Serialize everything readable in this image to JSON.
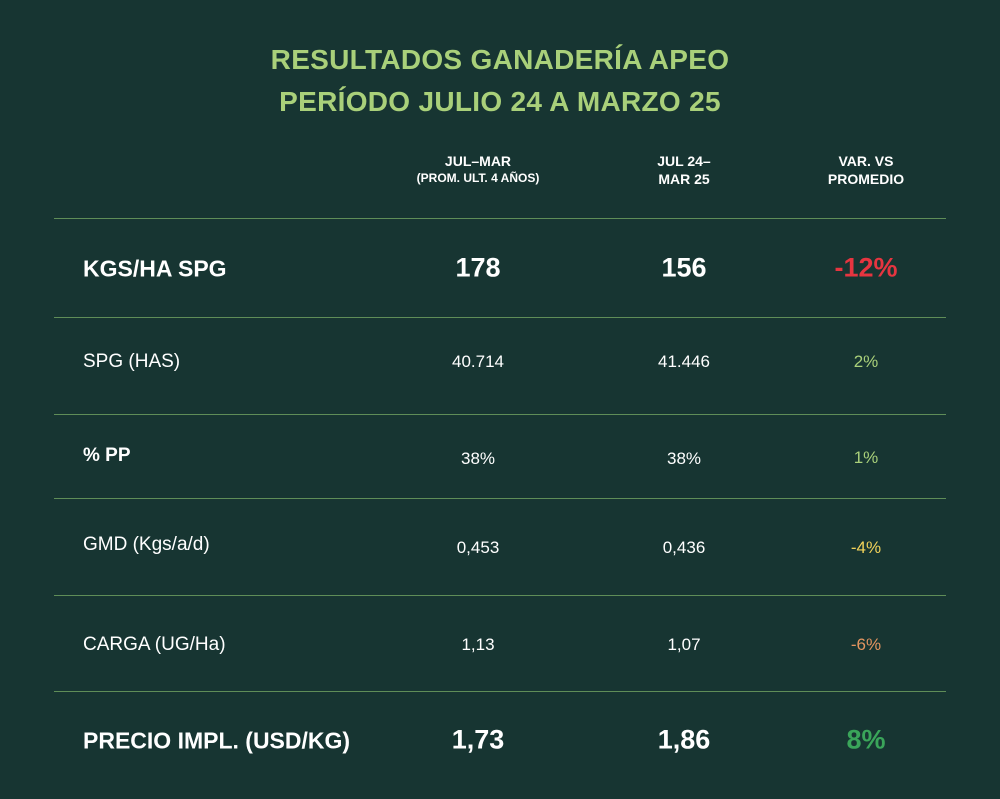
{
  "title_line1": "RESULTADOS GANADERÍA APEO",
  "title_line2": "PERÍODO JULIO 24 A MARZO 25",
  "colors": {
    "background": "#173532",
    "title": "#a9d07a",
    "rule": "#5f8d58",
    "negative_strong": "#e63540",
    "positive_light": "#a9d07a",
    "negative_yellow": "#f2d25a",
    "negative_orange": "#e49560",
    "positive_strong": "#3aa55a"
  },
  "chart_data": {
    "type": "table",
    "columns": [
      {
        "line1": "JUL–MAR",
        "line2": "(PROM. ULT. 4 AÑOS)"
      },
      {
        "line1": "JUL 24–",
        "line2": "MAR 25"
      },
      {
        "line1": "VAR. VS",
        "line2": "PROMEDIO"
      }
    ],
    "rows": [
      {
        "label": "KGS/HA SPG",
        "avg": "178",
        "current": "156",
        "var": "-12%",
        "var_color": "#e63540",
        "style": "big"
      },
      {
        "label": "SPG (HAS)",
        "avg": "40.714",
        "current": "41.446",
        "var": "2%",
        "var_color": "#a9d07a",
        "style": "small"
      },
      {
        "label": "% PP",
        "avg": "38%",
        "current": "38%",
        "var": "1%",
        "var_color": "#a9d07a",
        "style": "small-bold"
      },
      {
        "label": "GMD (Kgs/a/d)",
        "avg": "0,453",
        "current": "0,436",
        "var": "-4%",
        "var_color": "#f2d25a",
        "style": "small"
      },
      {
        "label": "CARGA (UG/Ha)",
        "avg": "1,13",
        "current": "1,07",
        "var": "-6%",
        "var_color": "#e49560",
        "style": "small"
      },
      {
        "label": "PRECIO IMPL. (USD/KG)",
        "avg": "1,73",
        "current": "1,86",
        "var": "8%",
        "var_color": "#3aa55a",
        "style": "big"
      }
    ]
  }
}
